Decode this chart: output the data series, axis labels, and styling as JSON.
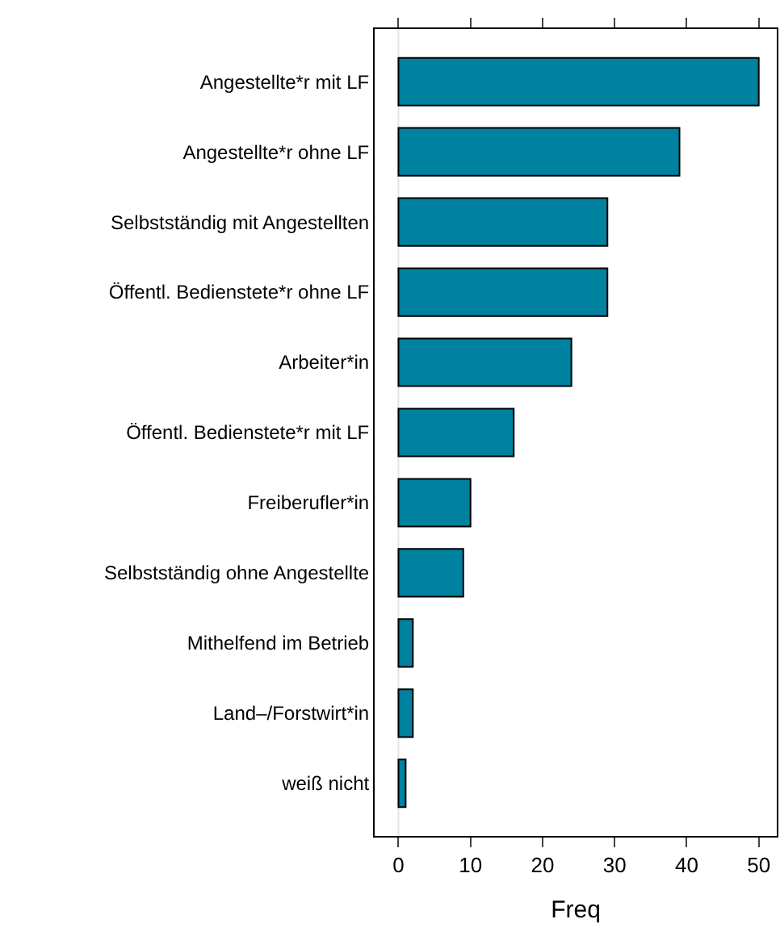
{
  "chart_data": {
    "type": "bar",
    "orientation": "horizontal",
    "xlabel": "Freq",
    "categories": [
      "Angestellte*r mit LF",
      "Angestellte*r ohne LF",
      "Selbstständig mit Angestellten",
      "Öffentl. Bedienstete*r ohne LF",
      "Arbeiter*in",
      "Öffentl. Bedienstete*r mit LF",
      "Freiberufler*in",
      "Selbstständig ohne Angestellte",
      "Mithelfend im Betrieb",
      "Land–/Forstwirt*in",
      "weiß nicht"
    ],
    "values": [
      50,
      39,
      29,
      29,
      24,
      16,
      10,
      9,
      2,
      2,
      1
    ],
    "color": "#00819f",
    "xlim": [
      -3.3,
      52.5
    ],
    "xticks": [
      0,
      10,
      20,
      30,
      40,
      50
    ],
    "ref_lines": [
      {
        "axis": "x",
        "value": 0,
        "color": "#e8e0e4"
      }
    ],
    "grid": false
  }
}
